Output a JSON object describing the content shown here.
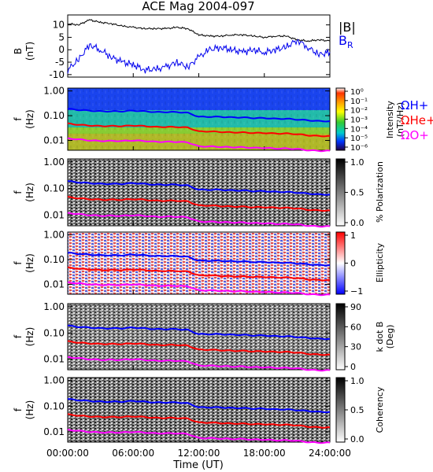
{
  "title": "ACE Mag 2004-097",
  "xlabel": "Time (UT)",
  "x_ticks": [
    "00:00:00",
    "06:00:00",
    "12:00:00",
    "18:00:00",
    "24:00:00"
  ],
  "colors": {
    "B_total": "#000000",
    "B_R": "#0000ee",
    "H_plus": "#0000ff",
    "He_plus": "#ff0000",
    "O_plus": "#ff00ff"
  },
  "chart_data": [
    {
      "type": "line",
      "panel": "magnetic-field",
      "ylabel": "B",
      "yunit": "(nT)",
      "ylim": [
        -11,
        14
      ],
      "yticks": [
        "10",
        "5",
        "0",
        "-5",
        "-10"
      ],
      "x_hours": [
        0,
        1,
        2,
        3,
        4,
        5,
        6,
        7,
        8,
        9,
        10,
        11,
        12,
        13,
        14,
        15,
        16,
        17,
        18,
        19,
        20,
        21,
        22,
        23,
        24
      ],
      "legend": [
        "|B|",
        "B_R"
      ],
      "series": [
        {
          "name": "|B|",
          "values": [
            10.5,
            10,
            12,
            11,
            10.5,
            9.5,
            9,
            8.5,
            8.5,
            8.5,
            9,
            8.5,
            6,
            5.5,
            5.5,
            6,
            6,
            5.5,
            5,
            5.5,
            5.5,
            4,
            3.5,
            4,
            3.5
          ]
        },
        {
          "name": "B_R",
          "values": [
            -8,
            -4,
            2,
            0,
            -3,
            -5,
            -6,
            -8,
            -8,
            -7,
            -5,
            -7,
            -3,
            0,
            1,
            0,
            -1,
            0,
            -1,
            0,
            1,
            4,
            1,
            -2,
            -1
          ]
        }
      ]
    },
    {
      "type": "heatmap",
      "panel": "intensity",
      "ylabel": "f",
      "yunit": "(Hz)",
      "colorbar_label": "Intensity",
      "colorbar_unit": "(nT²/Hz)",
      "colorbar_ticks": [
        "10⁰",
        "10⁻¹",
        "10⁻²",
        "10⁻³",
        "10⁻⁴",
        "10⁻⁵",
        "10⁻⁶"
      ],
      "legend": [
        "ΩH+",
        "ΩHe+",
        "ΩO+"
      ]
    },
    {
      "type": "heatmap",
      "panel": "polarization",
      "ylabel": "f",
      "yunit": "(Hz)",
      "colorbar_label": "% Polarization",
      "colorbar_ticks": [
        "1.0",
        "0.5",
        "0.0"
      ]
    },
    {
      "type": "heatmap",
      "panel": "ellipticity",
      "ylabel": "f",
      "yunit": "(Hz)",
      "colorbar_label": "Ellipticity",
      "colorbar_ticks": [
        "1",
        "0",
        "−1"
      ]
    },
    {
      "type": "heatmap",
      "panel": "k-dot-b",
      "ylabel": "f",
      "yunit": "(Hz)",
      "colorbar_label": "k dot B",
      "colorbar_unit": "(Deg)",
      "colorbar_ticks": [
        "90",
        "60",
        "30",
        "0"
      ]
    },
    {
      "type": "heatmap",
      "panel": "coherency",
      "ylabel": "f",
      "yunit": "(Hz)",
      "colorbar_label": "Coherency",
      "colorbar_ticks": [
        "1.0",
        "0.5",
        "0.0"
      ]
    }
  ],
  "frequency_axis": {
    "yscale": "log",
    "ylim": [
      0.004,
      1.3
    ],
    "yticks": [
      1.0,
      0.1,
      0.01
    ],
    "ytick_labels": [
      "1.00",
      "0.10",
      "0.01"
    ]
  },
  "gyrofrequencies": {
    "x_hours": [
      0,
      1,
      2,
      3,
      4,
      5,
      6,
      7,
      8,
      9,
      10,
      11,
      12,
      13,
      14,
      15,
      16,
      17,
      18,
      19,
      20,
      21,
      22,
      23,
      24
    ],
    "H_plus": [
      0.19,
      0.17,
      0.16,
      0.15,
      0.15,
      0.15,
      0.16,
      0.15,
      0.14,
      0.14,
      0.14,
      0.13,
      0.09,
      0.09,
      0.09,
      0.085,
      0.085,
      0.08,
      0.08,
      0.075,
      0.075,
      0.07,
      0.065,
      0.06,
      0.06
    ],
    "He_plus": [
      0.048,
      0.043,
      0.04,
      0.038,
      0.038,
      0.038,
      0.04,
      0.038,
      0.035,
      0.035,
      0.035,
      0.033,
      0.023,
      0.023,
      0.022,
      0.021,
      0.021,
      0.02,
      0.02,
      0.019,
      0.019,
      0.018,
      0.016,
      0.015,
      0.015
    ],
    "O_plus": [
      0.012,
      0.011,
      0.01,
      0.0095,
      0.0095,
      0.0095,
      0.01,
      0.0095,
      0.0088,
      0.0088,
      0.0088,
      0.0083,
      0.0057,
      0.0057,
      0.0055,
      0.0053,
      0.0053,
      0.005,
      0.005,
      0.0047,
      0.0047,
      0.0045,
      0.004,
      0.0038,
      0.0038
    ]
  }
}
